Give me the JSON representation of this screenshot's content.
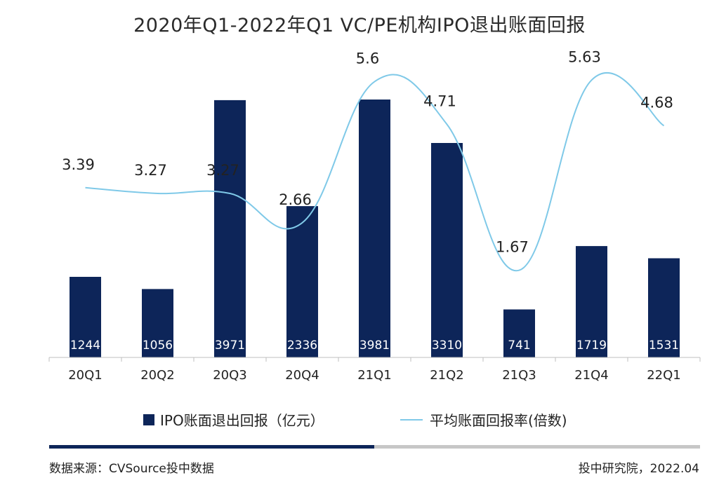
{
  "title": "2020年Q1-2022年Q1 VC/PE机构IPO退出账面回报",
  "colors": {
    "bar": "#0d2559",
    "line": "#7fc9e8",
    "rule_dark": "#0d2559",
    "rule_light": "#c7c7c7"
  },
  "chart_data": {
    "type": "bar",
    "categories": [
      "20Q1",
      "20Q2",
      "20Q3",
      "20Q4",
      "21Q1",
      "21Q2",
      "21Q3",
      "21Q4",
      "22Q1"
    ],
    "series": [
      {
        "name": "IPO账面退出回报（亿元）",
        "type": "bar",
        "values": [
          1244,
          1056,
          3971,
          2336,
          3981,
          3310,
          741,
          1719,
          1531
        ],
        "value_labels": [
          "1244",
          "1056",
          "3971",
          "2336",
          "3981",
          "3310",
          "741",
          "1719",
          "1531"
        ]
      },
      {
        "name": "平均账面回报率(倍数)",
        "type": "line",
        "smooth": true,
        "values": [
          3.39,
          3.27,
          3.27,
          2.66,
          5.6,
          4.71,
          1.67,
          5.63,
          4.68
        ],
        "value_labels": [
          "3.39",
          "3.27",
          "3.27",
          "2.66",
          "5.6",
          "4.71",
          "1.67",
          "5.63",
          "4.68"
        ]
      }
    ],
    "bar_axis_range": [
      0,
      4500
    ],
    "line_axis_range": [
      0,
      7.3
    ],
    "grid": false,
    "legend_position": "bottom"
  },
  "legend": {
    "bar_label": "IPO账面退出回报（亿元）",
    "line_label": "平均账面回报率(倍数)"
  },
  "footer": {
    "source": "数据来源：CVSource投中数据",
    "credit": "投中研究院，2022.04"
  }
}
